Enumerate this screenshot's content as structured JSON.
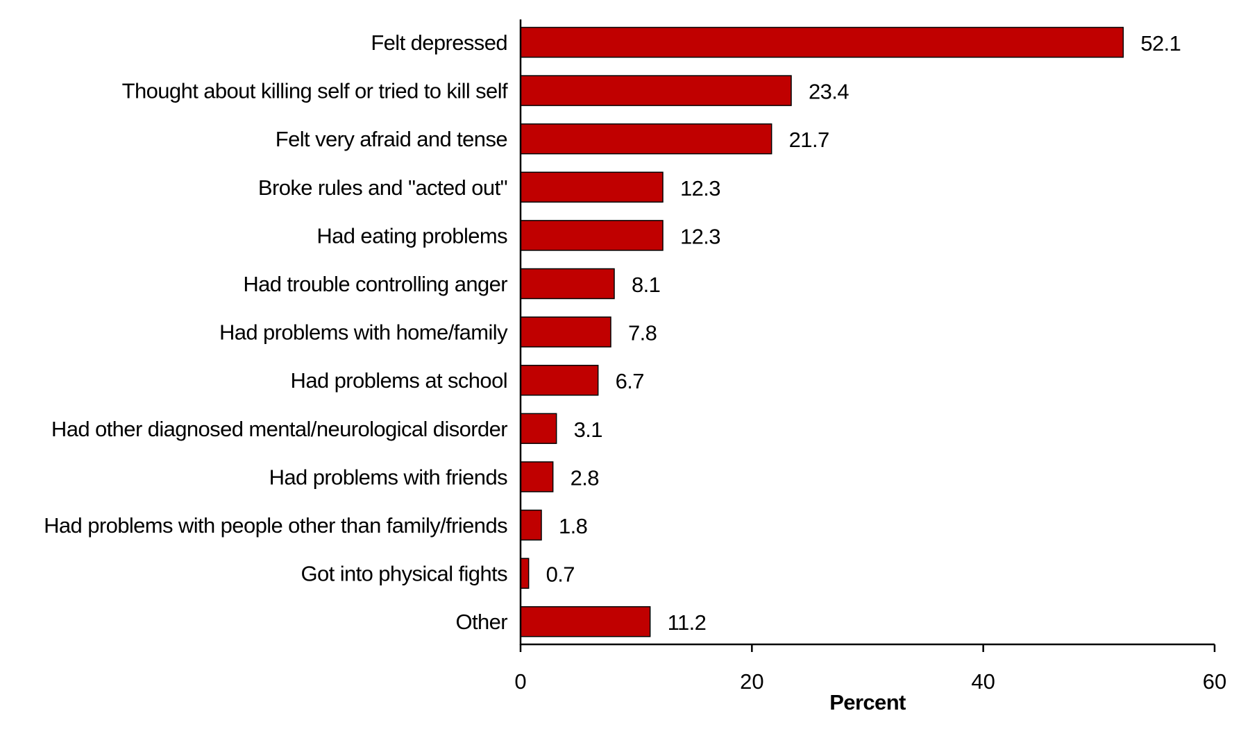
{
  "chart_data": {
    "type": "bar",
    "orientation": "horizontal",
    "categories": [
      "Felt depressed",
      "Thought about killing self or tried to kill self",
      "Felt very afraid and tense",
      "Broke rules and \"acted out\"",
      "Had eating problems",
      "Had trouble controlling anger",
      "Had problems with home/family",
      "Had problems at school",
      "Had other diagnosed mental/neurological disorder",
      "Had problems with friends",
      "Had problems with people other than family/friends",
      "Got into physical fights",
      "Other"
    ],
    "values": [
      52.1,
      23.4,
      21.7,
      12.3,
      12.3,
      8.1,
      7.8,
      6.7,
      3.1,
      2.8,
      1.8,
      0.7,
      11.2
    ],
    "value_labels": [
      "52.1",
      "23.4",
      "21.7",
      "12.3",
      "12.3",
      "8.1",
      "7.8",
      "6.7",
      "3.1",
      "2.8",
      "1.8",
      "0.7",
      "11.2"
    ],
    "xlabel": "Percent",
    "ylabel": "",
    "xlim": [
      0,
      60
    ],
    "xticks": [
      0,
      20,
      40,
      60
    ],
    "xtick_labels": [
      "0",
      "20",
      "40",
      "60"
    ],
    "grid": false,
    "bar_color": "#C00000",
    "bar_edge_color": "#000000"
  }
}
